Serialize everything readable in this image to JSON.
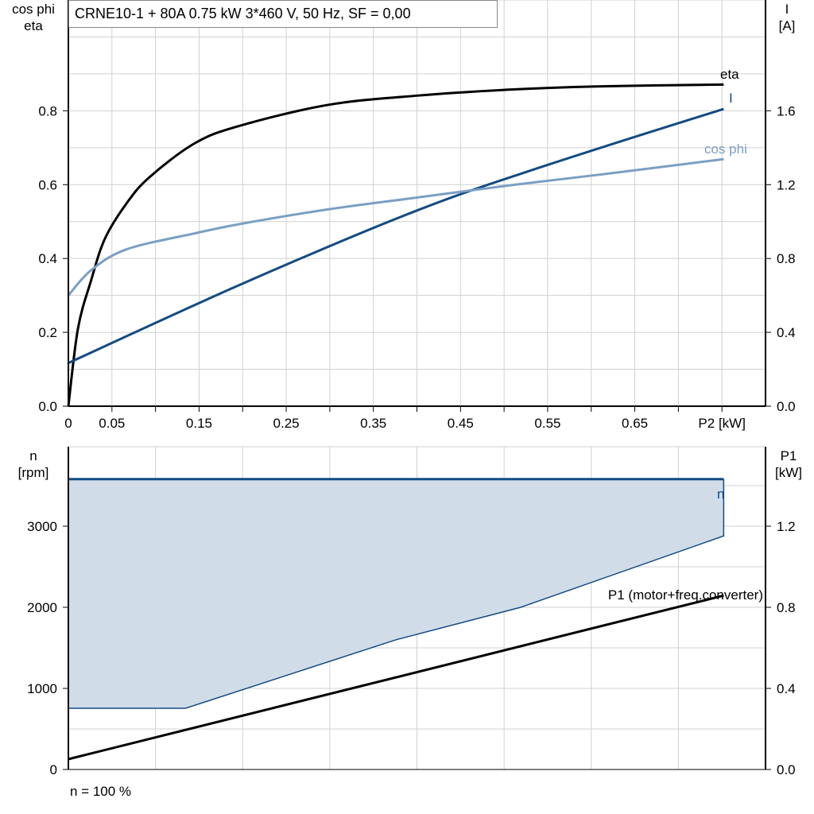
{
  "title": "CRNE10-1 + 80A   0.75 kW   3*460 V, 50 Hz, SF = 0,00",
  "footer_note": "n = 100 %",
  "colors": {
    "eta": "#000000",
    "I": "#134b82",
    "cos_phi": "#7b9fc3",
    "n": "#134b82",
    "n_band_fill": "#d0dce8",
    "P1": "#000000",
    "grid": "#d0d0d0"
  },
  "chart_data": [
    {
      "type": "line",
      "xlabel": "P2 [kW]",
      "ylabel_left": [
        "cos phi",
        "eta"
      ],
      "ylabel_right": [
        "I",
        "[A]"
      ],
      "xlim": [
        0,
        0.8
      ],
      "ylim_left": [
        0,
        1.1
      ],
      "ylim_right": [
        0,
        2.2
      ],
      "x_tick_labels": [
        [
          0,
          "0"
        ],
        [
          0.05,
          "0.05"
        ],
        [
          0.15,
          "0.15"
        ],
        [
          0.25,
          "0.25"
        ],
        [
          0.35,
          "0.35"
        ],
        [
          0.45,
          "0.45"
        ],
        [
          0.55,
          "0.55"
        ],
        [
          0.65,
          "0.65"
        ],
        [
          0.75,
          "P2 [kW]"
        ]
      ],
      "y_left_ticks": [
        [
          0,
          "0.0"
        ],
        [
          0.2,
          "0.2"
        ],
        [
          0.4,
          "0.4"
        ],
        [
          0.6,
          "0.6"
        ],
        [
          0.8,
          "0.8"
        ]
      ],
      "y_right_ticks": [
        [
          0,
          "0.0"
        ],
        [
          0.4,
          "0.4"
        ],
        [
          0.8,
          "0.8"
        ],
        [
          1.2,
          "1.2"
        ],
        [
          1.6,
          "1.6"
        ]
      ],
      "grid": true,
      "series": [
        {
          "name": "eta",
          "axis": "left",
          "color_key": "eta",
          "x": [
            0,
            0.011,
            0.026,
            0.042,
            0.067,
            0.093,
            0.145,
            0.196,
            0.298,
            0.4,
            0.503,
            0.606,
            0.752
          ],
          "y": [
            0,
            0.21,
            0.34,
            0.454,
            0.55,
            0.62,
            0.712,
            0.759,
            0.816,
            0.841,
            0.857,
            0.866,
            0.871
          ]
        },
        {
          "name": "I",
          "axis": "right",
          "color_key": "I",
          "x": [
            0,
            0.2,
            0.4,
            0.552,
            0.752
          ],
          "y": [
            0.234,
            0.664,
            1.06,
            1.31,
            1.61
          ]
        },
        {
          "name": "cos phi",
          "axis": "left",
          "color_key": "cos_phi",
          "x": [
            0,
            0.026,
            0.067,
            0.145,
            0.196,
            0.298,
            0.4,
            0.503,
            0.606,
            0.752
          ],
          "y": [
            0.3,
            0.368,
            0.425,
            0.468,
            0.493,
            0.533,
            0.565,
            0.597,
            0.626,
            0.669
          ]
        }
      ]
    },
    {
      "type": "area",
      "xlim": [
        0,
        0.8
      ],
      "ylabel_left": [
        "n",
        "[rpm]"
      ],
      "ylabel_right": [
        "P1",
        "[kW]"
      ],
      "ylim_left": [
        0,
        3980
      ],
      "ylim_right": [
        0,
        1.592
      ],
      "y_left_ticks": [
        [
          0,
          "0"
        ],
        [
          1000,
          "1000"
        ],
        [
          2000,
          "2000"
        ],
        [
          3000,
          "3000"
        ]
      ],
      "y_right_ticks": [
        [
          0,
          "0.0"
        ],
        [
          0.4,
          "0.4"
        ],
        [
          0.8,
          "0.8"
        ],
        [
          1.2,
          "1.2"
        ]
      ],
      "grid": true,
      "series": [
        {
          "name": "n",
          "axis": "left",
          "color_key": "n",
          "upper": {
            "x": [
              0,
              0.752
            ],
            "y": [
              3580,
              3580
            ]
          },
          "lower": {
            "x": [
              0,
              0.1345,
              0.376,
              0.519,
              0.752
            ],
            "y": [
              755,
              755,
              1600,
              2000,
              2880
            ]
          }
        },
        {
          "name": "P1 (motor+freq.converter)",
          "axis": "right",
          "color_key": "P1",
          "x": [
            0,
            0.752
          ],
          "y": [
            0.051,
            0.858
          ]
        }
      ]
    }
  ]
}
